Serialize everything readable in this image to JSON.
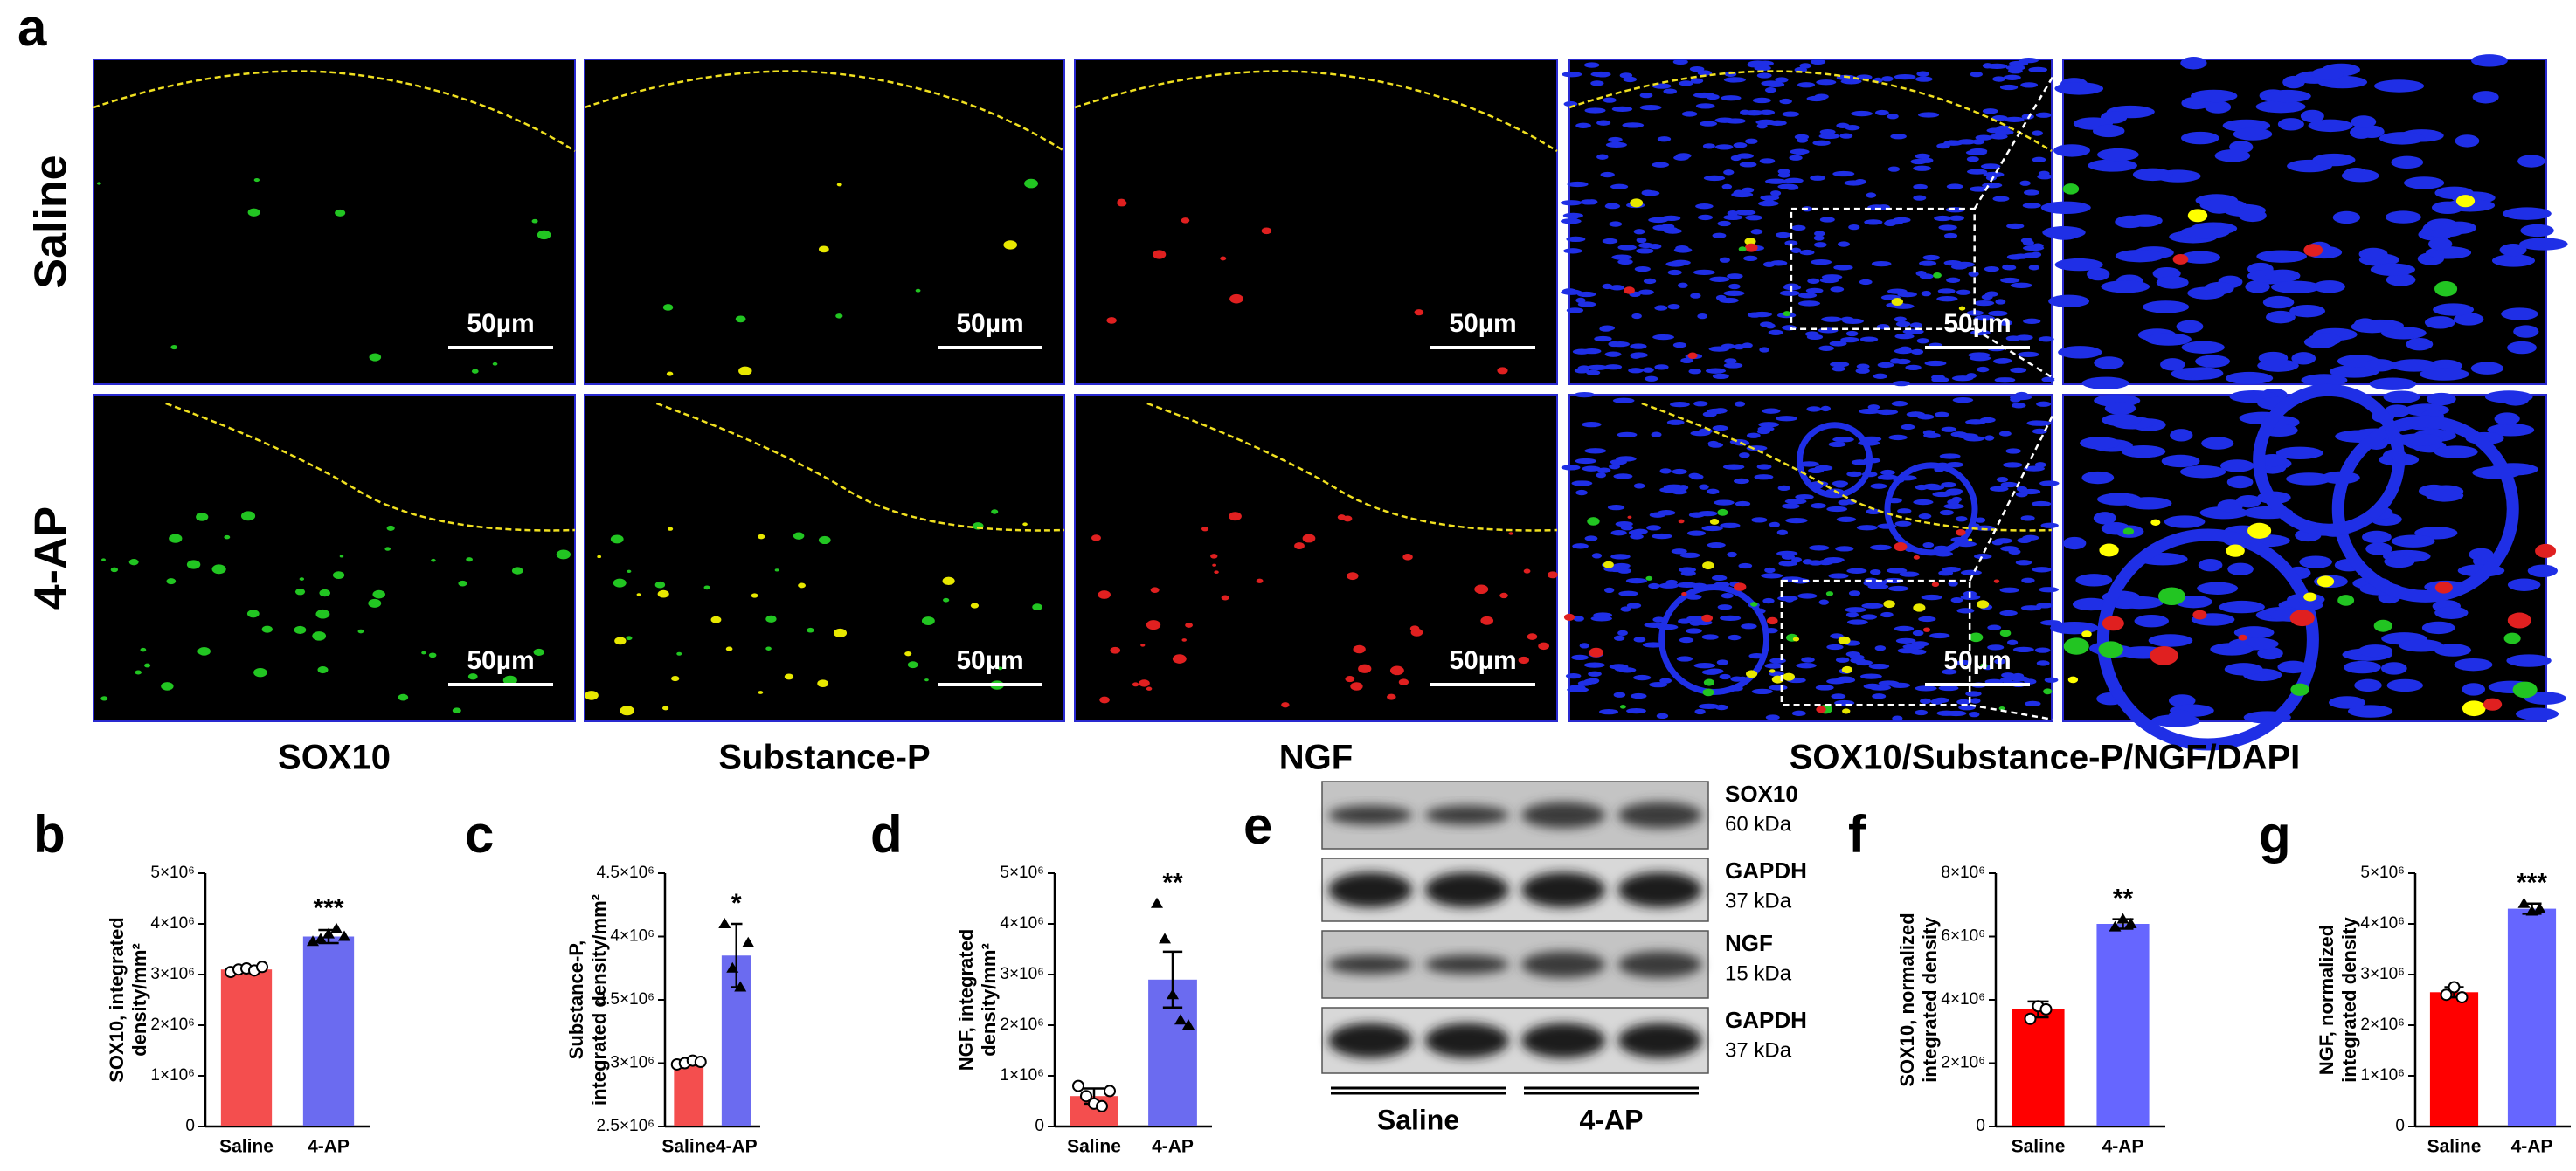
{
  "panel_a": {
    "label": "a",
    "rows": [
      "Saline",
      "4-AP"
    ],
    "columns": [
      "SOX10",
      "Substance-P",
      "NGF",
      "SOX10/Substance-P/NGF/DAPI"
    ],
    "scale_bar": "50µm"
  },
  "panel_e": {
    "label": "e",
    "bands": [
      {
        "name": "SOX10",
        "size": "60 kDa"
      },
      {
        "name": "GAPDH",
        "size": "37 kDa"
      },
      {
        "name": "NGF",
        "size": "15 kDa"
      },
      {
        "name": "GAPDH",
        "size": "37 kDa"
      }
    ],
    "groups": [
      "Saline",
      "4-AP"
    ]
  },
  "chart_data": [
    {
      "type": "bar",
      "panel": "b",
      "ylabel": [
        "SOX10, integrated",
        "density/mm²"
      ],
      "categories": [
        "Saline",
        "4-AP"
      ],
      "values": [
        3100000,
        3750000
      ],
      "errors": [
        50000,
        130000
      ],
      "colors": [
        "#f44e4e",
        "#6b6bf0"
      ],
      "points": [
        [
          3050000,
          3100000,
          3120000,
          3080000,
          3150000
        ],
        [
          3650000,
          3700000,
          3800000,
          3900000,
          3750000
        ]
      ],
      "significance": "***",
      "ylim": [
        0,
        5000000
      ],
      "yticks": [
        0,
        {
          "value": 1000000,
          "label": "1×10⁶"
        },
        {
          "value": 2000000,
          "label": "2×10⁶"
        },
        {
          "value": 3000000,
          "label": "3×10⁶"
        },
        {
          "value": 4000000,
          "label": "4×10⁶"
        },
        {
          "value": 5000000,
          "label": "5×10⁶"
        }
      ]
    },
    {
      "type": "bar",
      "panel": "c",
      "ylabel": [
        "Substance-P,",
        "integrated density/mm²"
      ],
      "categories": [
        "Saline",
        "4-AP"
      ],
      "values": [
        3010000,
        3850000
      ],
      "errors": [
        20000,
        250000
      ],
      "colors": [
        "#f44e4e",
        "#6b6bf0"
      ],
      "points": [
        [
          2990000,
          3000000,
          3020000,
          3010000
        ],
        [
          4100000,
          3750000,
          3600000,
          3950000
        ]
      ],
      "significance": "*",
      "ylim": [
        2500000,
        4500000
      ],
      "yticks": [
        {
          "value": 2500000,
          "label": "2.5×10⁶"
        },
        {
          "value": 3000000,
          "label": "3×10⁶"
        },
        {
          "value": 3500000,
          "label": "3.5×10⁶"
        },
        {
          "value": 4000000,
          "label": "4×10⁶"
        },
        {
          "value": 4500000,
          "label": "4.5×10⁶"
        }
      ]
    },
    {
      "type": "bar",
      "panel": "d",
      "ylabel": [
        "NGF, integrated",
        "density/mm²"
      ],
      "categories": [
        "Saline",
        "4-AP"
      ],
      "values": [
        600000,
        2900000
      ],
      "errors": [
        150000,
        550000
      ],
      "colors": [
        "#f44e4e",
        "#6b6bf0"
      ],
      "points": [
        [
          800000,
          600000,
          450000,
          400000,
          700000
        ],
        [
          4400000,
          3700000,
          2600000,
          2100000,
          2000000
        ]
      ],
      "significance": "**",
      "ylim": [
        0,
        5000000
      ],
      "yticks": [
        0,
        {
          "value": 1000000,
          "label": "1×10⁶"
        },
        {
          "value": 2000000,
          "label": "2×10⁶"
        },
        {
          "value": 3000000,
          "label": "3×10⁶"
        },
        {
          "value": 4000000,
          "label": "4×10⁶"
        },
        {
          "value": 5000000,
          "label": "5×10⁶"
        }
      ]
    },
    {
      "type": "bar",
      "panel": "f",
      "ylabel": [
        "SOX10, normalized",
        "integrated density"
      ],
      "categories": [
        "Saline",
        "4-AP"
      ],
      "values": [
        3700000,
        6400000
      ],
      "errors": [
        250000,
        150000
      ],
      "colors": [
        "#ff0000",
        "#6666ff"
      ],
      "points": [
        [
          3400000,
          3800000,
          3700000
        ],
        [
          6300000,
          6550000,
          6400000
        ]
      ],
      "significance": "**",
      "ylim": [
        0,
        8000000
      ],
      "yticks": [
        0,
        {
          "value": 2000000,
          "label": "2×10⁶"
        },
        {
          "value": 4000000,
          "label": "4×10⁶"
        },
        {
          "value": 6000000,
          "label": "6×10⁶"
        },
        {
          "value": 8000000,
          "label": "8×10⁶"
        }
      ]
    },
    {
      "type": "bar",
      "panel": "g",
      "ylabel": [
        "NGF, normalized",
        "integrated density"
      ],
      "categories": [
        "Saline",
        "4-AP"
      ],
      "values": [
        2650000,
        4300000
      ],
      "errors": [
        100000,
        100000
      ],
      "colors": [
        "#ff0000",
        "#6666ff"
      ],
      "points": [
        [
          2600000,
          2750000,
          2550000
        ],
        [
          4400000,
          4250000,
          4300000
        ]
      ],
      "significance": "***",
      "ylim": [
        0,
        5000000
      ],
      "yticks": [
        0,
        {
          "value": 1000000,
          "label": "1×10⁶"
        },
        {
          "value": 2000000,
          "label": "2×10⁶"
        },
        {
          "value": 3000000,
          "label": "3×10⁶"
        },
        {
          "value": 4000000,
          "label": "4×10⁶"
        },
        {
          "value": 5000000,
          "label": "5×10⁶"
        }
      ]
    }
  ]
}
